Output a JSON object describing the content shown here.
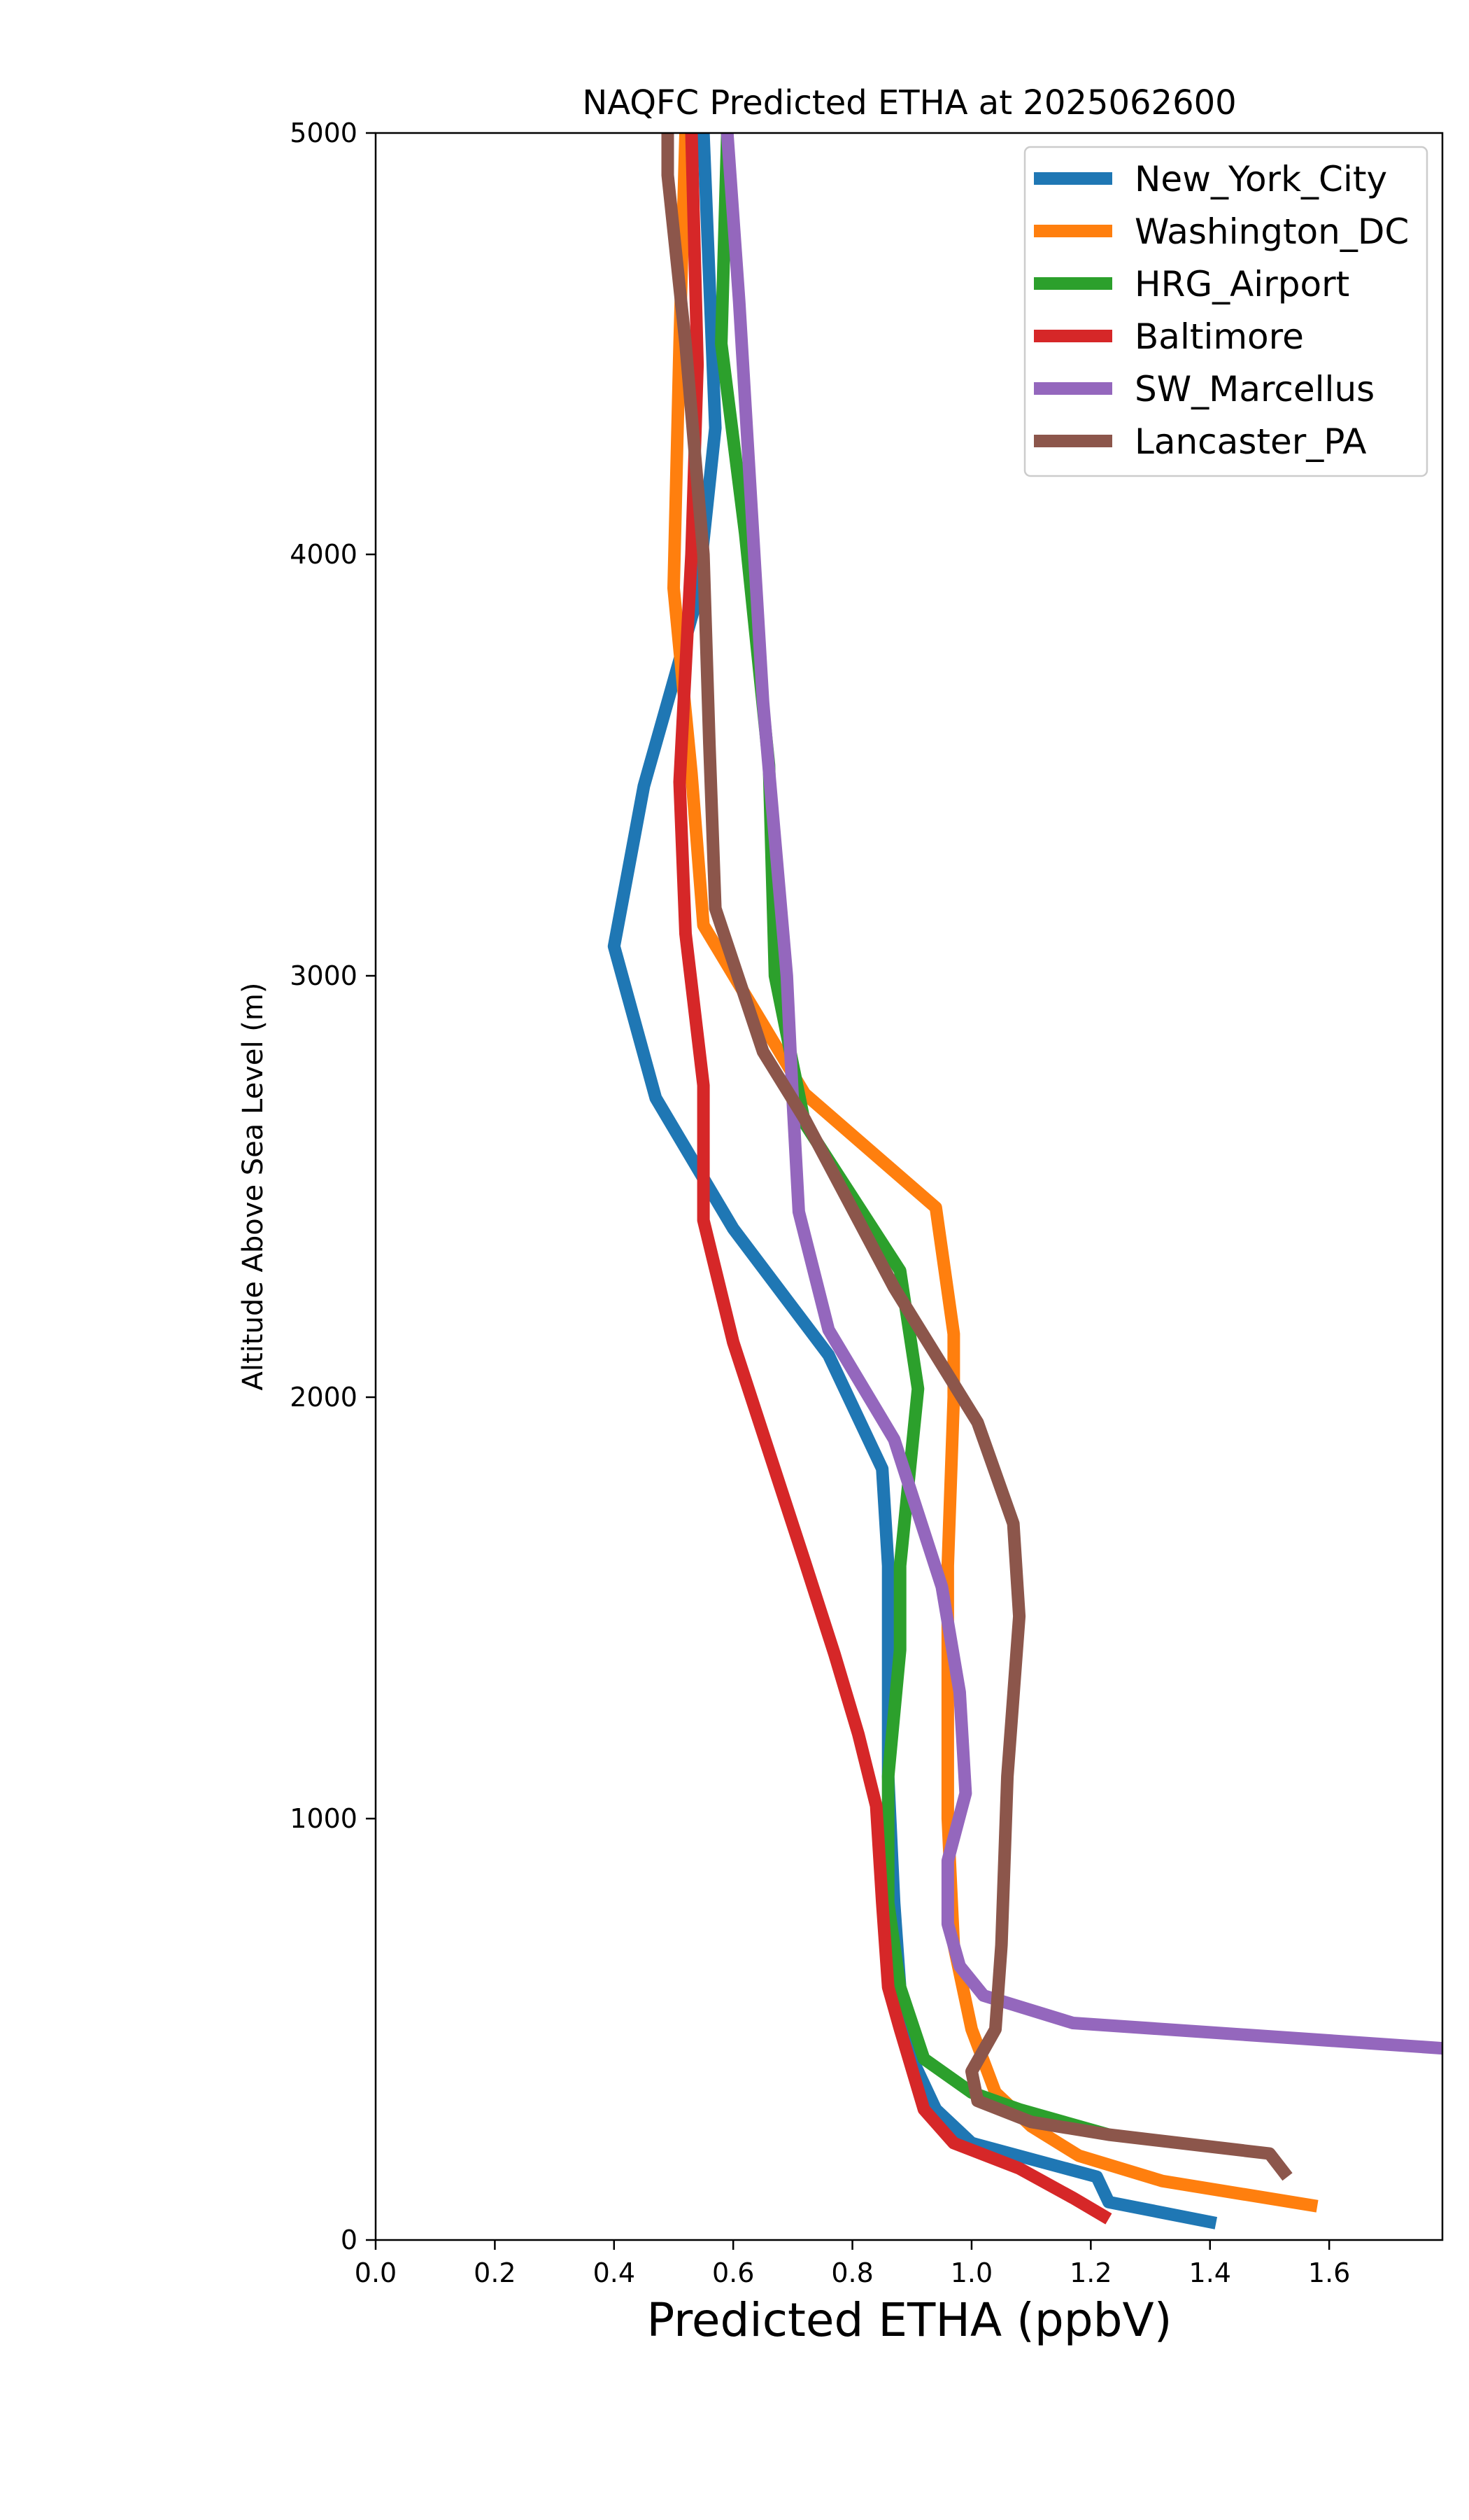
{
  "chart_data": {
    "type": "line",
    "title": "NAQFC Predicted ETHA at 2025062600",
    "xlabel": "Predicted ETHA (ppbV)",
    "ylabel": "Altitude Above Sea Level (m)",
    "xlim": [
      0.0,
      1.79
    ],
    "ylim": [
      0,
      5000
    ],
    "xticks": [
      0.0,
      0.2,
      0.4,
      0.6,
      0.8,
      1.0,
      1.2,
      1.4,
      1.6
    ],
    "xtick_labels": [
      "0.0",
      "0.2",
      "0.4",
      "0.6",
      "0.8",
      "1.0",
      "1.2",
      "1.4",
      "1.6"
    ],
    "yticks": [
      0,
      1000,
      2000,
      3000,
      4000,
      5000
    ],
    "ytick_labels": [
      "0",
      "1000",
      "2000",
      "3000",
      "4000",
      "5000"
    ],
    "grid": false,
    "legend_position": "top-right",
    "series": [
      {
        "name": "New_York_City",
        "color": "#1f77b4",
        "x": [
          1.41,
          1.23,
          1.21,
          1.0,
          0.94,
          0.9,
          0.88,
          0.87,
          0.86,
          0.86,
          0.85,
          0.76,
          0.6,
          0.47,
          0.4,
          0.45,
          0.54,
          0.57,
          0.55
        ],
        "y": [
          40,
          90,
          150,
          230,
          310,
          430,
          600,
          800,
          1100,
          1600,
          1830,
          2100,
          2400,
          2710,
          3070,
          3450,
          3900,
          4300,
          5000
        ]
      },
      {
        "name": "Washington_DC",
        "color": "#ff7f0e",
        "x": [
          1.58,
          1.32,
          1.18,
          1.1,
          1.04,
          1.0,
          0.97,
          0.96,
          0.96,
          0.97,
          0.97,
          0.94,
          0.72,
          0.55,
          0.53,
          0.5,
          0.51,
          0.52
        ],
        "y": [
          80,
          140,
          200,
          270,
          350,
          500,
          700,
          1000,
          1600,
          2000,
          2150,
          2450,
          2720,
          3120,
          3480,
          3920,
          4500,
          5000
        ]
      },
      {
        "name": "HRG_Airport",
        "color": "#2ca02c",
        "x": [
          1.23,
          1.08,
          1.0,
          0.92,
          0.88,
          0.86,
          0.86,
          0.88,
          0.88,
          0.91,
          0.88,
          0.72,
          0.67,
          0.66,
          0.62,
          0.58,
          0.59
        ],
        "y": [
          250,
          310,
          350,
          430,
          600,
          800,
          1100,
          1400,
          1600,
          2020,
          2300,
          2650,
          3000,
          3500,
          4050,
          4500,
          5000
        ]
      },
      {
        "name": "Baltimore",
        "color": "#d62728",
        "x": [
          1.23,
          1.17,
          1.08,
          0.97,
          0.92,
          0.88,
          0.86,
          0.85,
          0.84,
          0.81,
          0.77,
          0.72,
          0.6,
          0.55,
          0.55,
          0.52,
          0.51,
          0.53,
          0.54,
          0.53
        ],
        "y": [
          50,
          100,
          170,
          230,
          310,
          500,
          600,
          800,
          1030,
          1200,
          1390,
          1610,
          2130,
          2420,
          2740,
          3100,
          3460,
          4000,
          4450,
          5000
        ]
      },
      {
        "name": "SW_Marcellus",
        "color": "#9467bd",
        "x": [
          1.79,
          1.17,
          1.02,
          0.98,
          0.96,
          0.96,
          0.99,
          0.98,
          0.95,
          0.87,
          0.76,
          0.71,
          0.7,
          0.69,
          0.65,
          0.61,
          0.59
        ],
        "y": [
          455,
          515,
          580,
          650,
          750,
          900,
          1060,
          1300,
          1550,
          1900,
          2160,
          2440,
          2700,
          3000,
          3650,
          4600,
          5000
        ]
      },
      {
        "name": "Lancaster_PA",
        "color": "#8c564b",
        "x": [
          1.53,
          1.5,
          1.23,
          1.1,
          1.01,
          1.0,
          1.04,
          1.05,
          1.06,
          1.08,
          1.07,
          1.01,
          0.87,
          0.72,
          0.65,
          0.57,
          0.56,
          0.55,
          0.52,
          0.49,
          0.49
        ],
        "y": [
          150,
          205,
          250,
          280,
          330,
          400,
          500,
          700,
          1100,
          1480,
          1700,
          1940,
          2260,
          2660,
          2820,
          3160,
          3550,
          4000,
          4500,
          4900,
          5000
        ]
      }
    ]
  }
}
